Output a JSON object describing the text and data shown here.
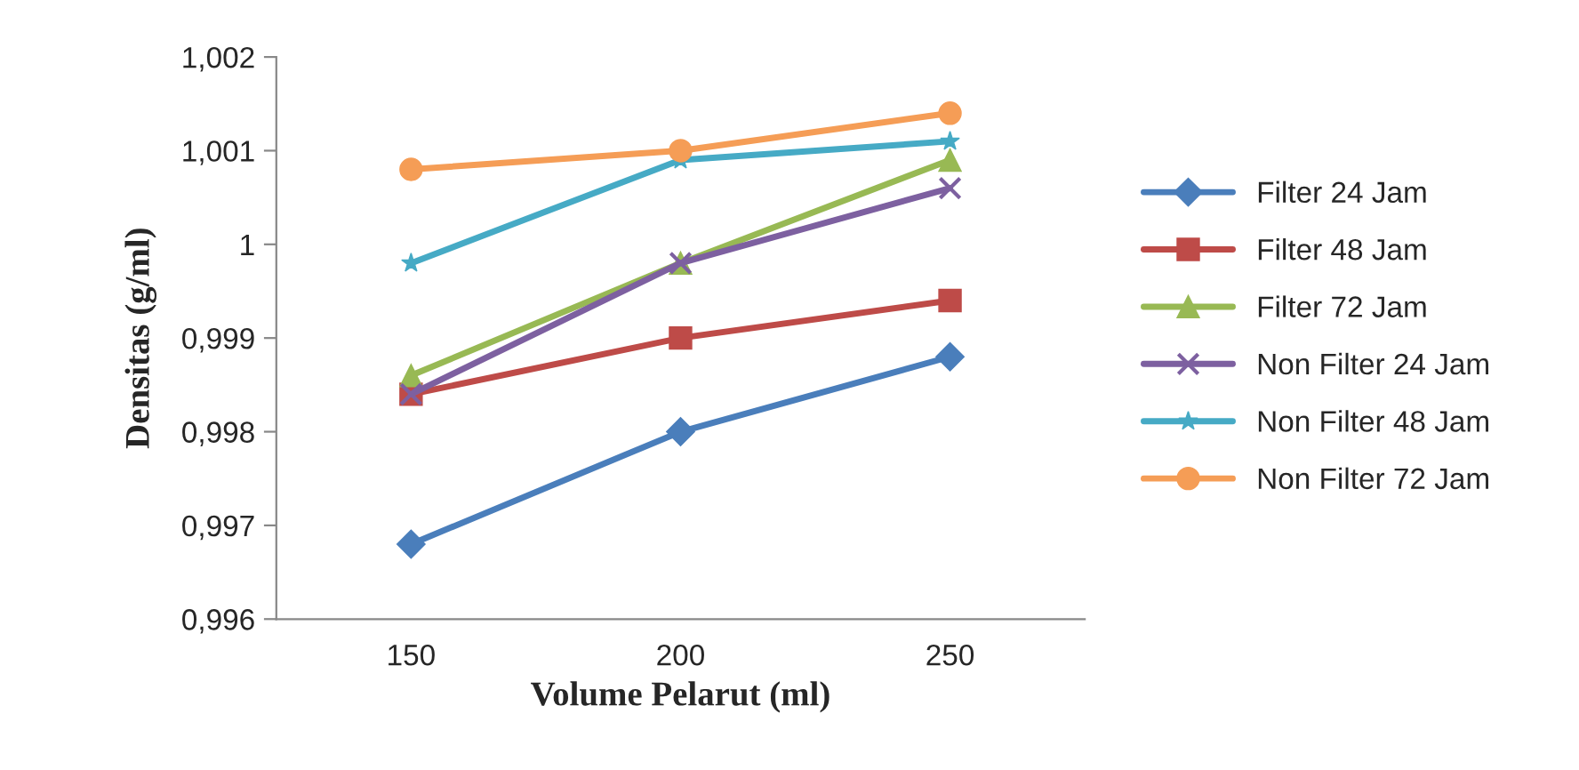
{
  "chart_data": {
    "type": "line",
    "xlabel": "Volume Pelarut (ml)",
    "ylabel": "Densitas (g/ml)",
    "categories": [
      "150",
      "200",
      "250"
    ],
    "series": [
      {
        "name": "Filter 24 Jam",
        "color": "#4a7ebb",
        "marker": "diamond",
        "values": [
          0.9968,
          0.998,
          0.9988
        ]
      },
      {
        "name": "Filter 48 Jam",
        "color": "#be4b48",
        "marker": "square",
        "values": [
          0.9984,
          0.999,
          0.9994
        ]
      },
      {
        "name": "Filter 72 Jam",
        "color": "#98b954",
        "marker": "triangle",
        "values": [
          0.9986,
          0.9998,
          1.0009
        ]
      },
      {
        "name": "Non Filter 24 Jam",
        "color": "#7d60a0",
        "marker": "cross",
        "values": [
          0.9984,
          0.9998,
          1.0006
        ]
      },
      {
        "name": "Non Filter 48 Jam",
        "color": "#46aac5",
        "marker": "star",
        "values": [
          0.9998,
          1.0009,
          1.0011
        ]
      },
      {
        "name": "Non Filter 72 Jam",
        "color": "#f59d56",
        "marker": "circle",
        "values": [
          1.0008,
          1.001,
          1.0014
        ]
      }
    ],
    "ylim": [
      0.996,
      1.002
    ],
    "yticks": [
      {
        "value": 0.996,
        "label": "0,996"
      },
      {
        "value": 0.997,
        "label": "0,997"
      },
      {
        "value": 0.998,
        "label": "0,998"
      },
      {
        "value": 0.999,
        "label": "0,999"
      },
      {
        "value": 1,
        "label": "1"
      },
      {
        "value": 1.001,
        "label": "1,001"
      },
      {
        "value": 1.002,
        "label": "1,002"
      }
    ],
    "grid": false,
    "legend": "right",
    "line_style": "solid"
  }
}
